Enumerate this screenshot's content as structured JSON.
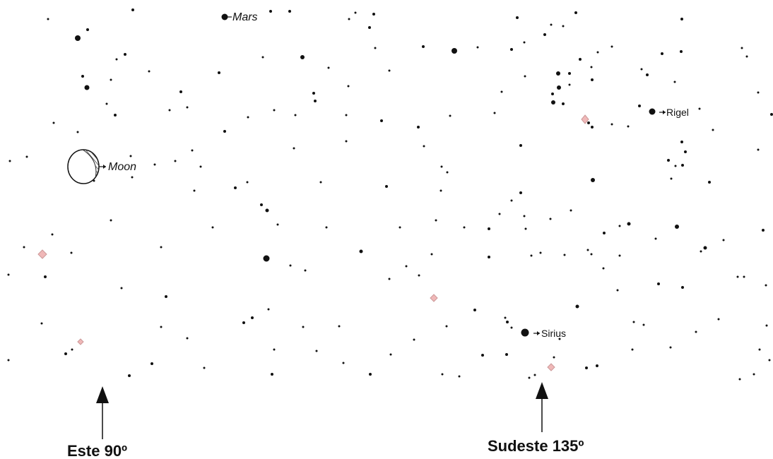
{
  "labels": {
    "mars": "Mars",
    "moon": "Moon",
    "rigel": "Rigel",
    "sirius": "Sirius"
  },
  "directions": {
    "east": "Este 90º",
    "southeast": "Sudeste 135º"
  },
  "colors": {
    "star": "#111111",
    "deep_sky_object": "#f0b8b8",
    "moon_shade": "#555555",
    "arrow": "#111111"
  },
  "icons": {
    "arrow": "up-arrow-icon",
    "moon": "moon-phase-icon",
    "deep_sky": "diamond-icon"
  }
}
